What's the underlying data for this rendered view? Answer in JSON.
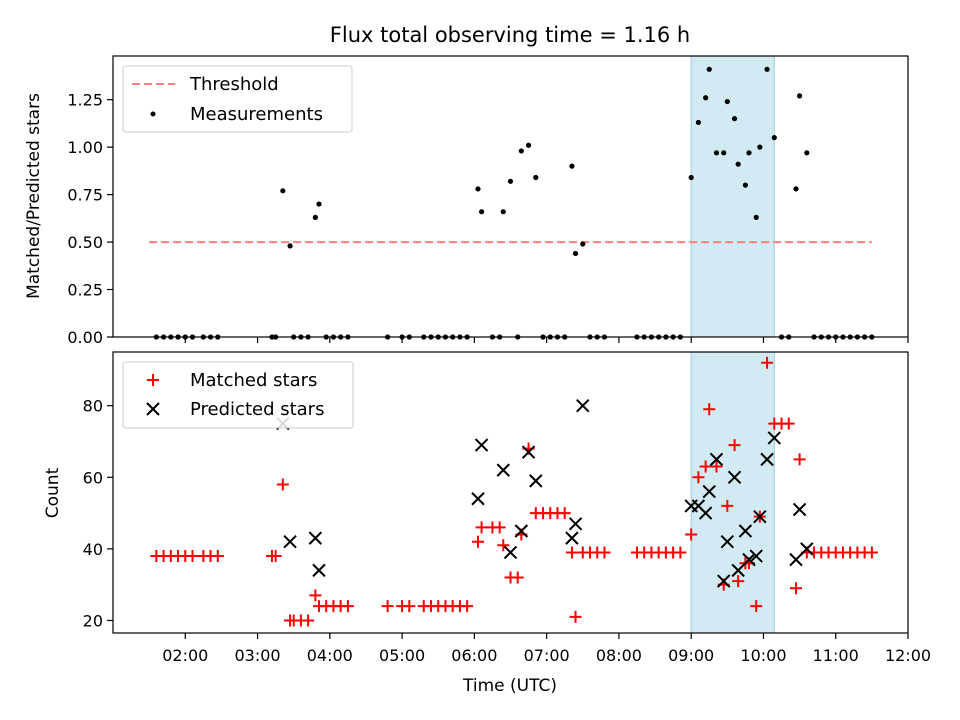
{
  "chart_data": [
    {
      "type": "scatter",
      "title": "Flux total observing time = 1.16 h",
      "xlabel": "",
      "ylabel": "Matched/Predicted stars",
      "xlim": [
        1.0,
        12.0
      ],
      "ylim": [
        0.0,
        1.48
      ],
      "yticks": [
        0.0,
        0.25,
        0.5,
        0.75,
        1.0,
        1.25
      ],
      "ytick_labels": [
        "0.00",
        "0.25",
        "0.50",
        "0.75",
        "1.00",
        "1.25"
      ],
      "highlight_span": {
        "x": [
          9.0,
          10.15
        ],
        "color": "#add8e6"
      },
      "legend": {
        "position": "upper-left"
      },
      "series": [
        {
          "name": "Threshold",
          "kind": "dashed-line",
          "color": "#ff7f7f",
          "points": [
            [
              1.5,
              0.5
            ],
            [
              11.5,
              0.5
            ]
          ]
        },
        {
          "name": "Measurements",
          "kind": "dot",
          "color": "#000000",
          "points": [
            [
              1.6,
              0
            ],
            [
              1.7,
              0
            ],
            [
              1.8,
              0
            ],
            [
              1.9,
              0
            ],
            [
              2.0,
              0
            ],
            [
              2.1,
              0
            ],
            [
              2.25,
              0
            ],
            [
              2.35,
              0
            ],
            [
              2.45,
              0
            ],
            [
              3.2,
              0
            ],
            [
              3.25,
              0
            ],
            [
              3.35,
              0.77
            ],
            [
              3.45,
              0.48
            ],
            [
              3.5,
              0
            ],
            [
              3.6,
              0
            ],
            [
              3.7,
              0
            ],
            [
              3.8,
              0.63
            ],
            [
              3.85,
              0.7
            ],
            [
              3.95,
              0
            ],
            [
              4.05,
              0
            ],
            [
              4.15,
              0
            ],
            [
              4.25,
              0
            ],
            [
              4.8,
              0
            ],
            [
              5.0,
              0
            ],
            [
              5.1,
              0
            ],
            [
              5.3,
              0
            ],
            [
              5.4,
              0
            ],
            [
              5.5,
              0
            ],
            [
              5.6,
              0
            ],
            [
              5.7,
              0
            ],
            [
              5.8,
              0
            ],
            [
              5.9,
              0
            ],
            [
              6.05,
              0.78
            ],
            [
              6.1,
              0.66
            ],
            [
              6.25,
              0
            ],
            [
              6.35,
              0
            ],
            [
              6.4,
              0.66
            ],
            [
              6.5,
              0.82
            ],
            [
              6.6,
              0
            ],
            [
              6.65,
              0.98
            ],
            [
              6.75,
              1.01
            ],
            [
              6.85,
              0.84
            ],
            [
              6.95,
              0
            ],
            [
              7.05,
              0
            ],
            [
              7.15,
              0
            ],
            [
              7.25,
              0
            ],
            [
              7.35,
              0.9
            ],
            [
              7.4,
              0.44
            ],
            [
              7.5,
              0.49
            ],
            [
              7.6,
              0
            ],
            [
              7.7,
              0
            ],
            [
              7.8,
              0
            ],
            [
              8.25,
              0
            ],
            [
              8.35,
              0
            ],
            [
              8.45,
              0
            ],
            [
              8.55,
              0
            ],
            [
              8.65,
              0
            ],
            [
              8.75,
              0
            ],
            [
              8.85,
              0
            ],
            [
              9.0,
              0.84
            ],
            [
              9.1,
              1.13
            ],
            [
              9.2,
              1.26
            ],
            [
              9.25,
              1.41
            ],
            [
              9.35,
              0.97
            ],
            [
              9.45,
              0.97
            ],
            [
              9.5,
              1.24
            ],
            [
              9.6,
              1.15
            ],
            [
              9.65,
              0.91
            ],
            [
              9.75,
              0.8
            ],
            [
              9.8,
              0.97
            ],
            [
              9.9,
              0.63
            ],
            [
              9.95,
              1.0
            ],
            [
              10.05,
              1.41
            ],
            [
              10.15,
              1.05
            ],
            [
              10.25,
              0
            ],
            [
              10.35,
              0
            ],
            [
              10.45,
              0.78
            ],
            [
              10.5,
              1.27
            ],
            [
              10.6,
              0.97
            ],
            [
              10.7,
              0
            ],
            [
              10.8,
              0
            ],
            [
              10.9,
              0
            ],
            [
              11.0,
              0
            ],
            [
              11.1,
              0
            ],
            [
              11.2,
              0
            ],
            [
              11.3,
              0
            ],
            [
              11.4,
              0
            ],
            [
              11.5,
              0
            ]
          ]
        }
      ]
    },
    {
      "type": "scatter",
      "title": "",
      "xlabel": "Time (UTC)",
      "ylabel": "Count",
      "xlim": [
        1.0,
        12.0
      ],
      "ylim": [
        16.5,
        95.0
      ],
      "xticks": [
        2,
        3,
        4,
        5,
        6,
        7,
        8,
        9,
        10,
        11,
        12
      ],
      "xtick_labels": [
        "02:00",
        "03:00",
        "04:00",
        "05:00",
        "06:00",
        "07:00",
        "08:00",
        "09:00",
        "10:00",
        "11:00",
        "12:00"
      ],
      "yticks": [
        20,
        40,
        60,
        80
      ],
      "ytick_labels": [
        "20",
        "40",
        "60",
        "80"
      ],
      "highlight_span": {
        "x": [
          9.0,
          10.15
        ],
        "color": "#add8e6"
      },
      "legend": {
        "position": "upper-left"
      },
      "series": [
        {
          "name": "Matched stars",
          "marker": "plus",
          "color": "#ff0000",
          "points": [
            [
              1.6,
              38
            ],
            [
              1.7,
              38
            ],
            [
              1.8,
              38
            ],
            [
              1.9,
              38
            ],
            [
              2.0,
              38
            ],
            [
              2.1,
              38
            ],
            [
              2.25,
              38
            ],
            [
              2.35,
              38
            ],
            [
              2.45,
              38
            ],
            [
              3.2,
              38
            ],
            [
              3.25,
              38
            ],
            [
              3.35,
              58
            ],
            [
              3.45,
              20
            ],
            [
              3.5,
              20
            ],
            [
              3.6,
              20
            ],
            [
              3.7,
              20
            ],
            [
              3.8,
              27
            ],
            [
              3.85,
              24
            ],
            [
              3.95,
              24
            ],
            [
              4.05,
              24
            ],
            [
              4.15,
              24
            ],
            [
              4.25,
              24
            ],
            [
              4.8,
              24
            ],
            [
              5.0,
              24
            ],
            [
              5.1,
              24
            ],
            [
              5.3,
              24
            ],
            [
              5.4,
              24
            ],
            [
              5.5,
              24
            ],
            [
              5.6,
              24
            ],
            [
              5.7,
              24
            ],
            [
              5.8,
              24
            ],
            [
              5.9,
              24
            ],
            [
              6.05,
              42
            ],
            [
              6.1,
              46
            ],
            [
              6.25,
              46
            ],
            [
              6.35,
              46
            ],
            [
              6.4,
              41
            ],
            [
              6.5,
              32
            ],
            [
              6.6,
              32
            ],
            [
              6.65,
              44
            ],
            [
              6.75,
              68
            ],
            [
              6.85,
              50
            ],
            [
              6.95,
              50
            ],
            [
              7.05,
              50
            ],
            [
              7.15,
              50
            ],
            [
              7.25,
              50
            ],
            [
              7.35,
              39
            ],
            [
              7.4,
              21
            ],
            [
              7.5,
              39
            ],
            [
              7.6,
              39
            ],
            [
              7.7,
              39
            ],
            [
              7.8,
              39
            ],
            [
              8.25,
              39
            ],
            [
              8.35,
              39
            ],
            [
              8.45,
              39
            ],
            [
              8.55,
              39
            ],
            [
              8.65,
              39
            ],
            [
              8.75,
              39
            ],
            [
              8.85,
              39
            ],
            [
              9.0,
              44
            ],
            [
              9.1,
              60
            ],
            [
              9.2,
              63
            ],
            [
              9.25,
              79
            ],
            [
              9.35,
              63
            ],
            [
              9.45,
              30
            ],
            [
              9.5,
              52
            ],
            [
              9.6,
              69
            ],
            [
              9.65,
              31
            ],
            [
              9.75,
              36
            ],
            [
              9.8,
              36
            ],
            [
              9.9,
              24
            ],
            [
              9.95,
              49
            ],
            [
              10.05,
              92
            ],
            [
              10.15,
              75
            ],
            [
              10.25,
              75
            ],
            [
              10.35,
              75
            ],
            [
              10.45,
              29
            ],
            [
              10.5,
              65
            ],
            [
              10.6,
              39
            ],
            [
              10.7,
              39
            ],
            [
              10.8,
              39
            ],
            [
              10.9,
              39
            ],
            [
              11.0,
              39
            ],
            [
              11.1,
              39
            ],
            [
              11.2,
              39
            ],
            [
              11.3,
              39
            ],
            [
              11.4,
              39
            ],
            [
              11.5,
              39
            ]
          ]
        },
        {
          "name": "Predicted stars",
          "marker": "x",
          "color": "#000000",
          "points": [
            [
              3.35,
              75
            ],
            [
              3.45,
              42
            ],
            [
              3.8,
              43
            ],
            [
              3.85,
              34
            ],
            [
              6.05,
              54
            ],
            [
              6.1,
              69
            ],
            [
              6.4,
              62
            ],
            [
              6.5,
              39
            ],
            [
              6.65,
              45
            ],
            [
              6.75,
              67
            ],
            [
              6.85,
              59
            ],
            [
              7.35,
              43
            ],
            [
              7.4,
              47
            ],
            [
              7.5,
              80
            ],
            [
              9.0,
              52
            ],
            [
              9.1,
              52
            ],
            [
              9.2,
              50
            ],
            [
              9.25,
              56
            ],
            [
              9.35,
              65
            ],
            [
              9.45,
              31
            ],
            [
              9.5,
              42
            ],
            [
              9.6,
              60
            ],
            [
              9.65,
              34
            ],
            [
              9.75,
              45
            ],
            [
              9.8,
              37
            ],
            [
              9.9,
              38
            ],
            [
              9.95,
              49
            ],
            [
              10.05,
              65
            ],
            [
              10.15,
              71
            ],
            [
              10.45,
              37
            ],
            [
              10.5,
              51
            ],
            [
              10.6,
              40
            ]
          ]
        }
      ]
    }
  ]
}
